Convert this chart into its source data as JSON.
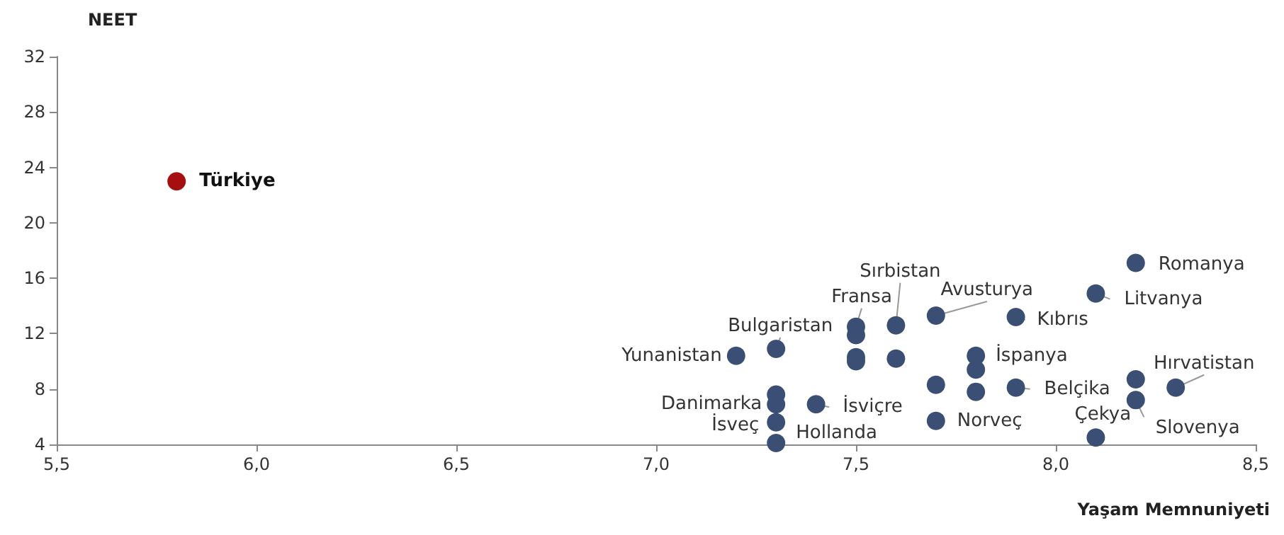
{
  "chart_data": {
    "type": "scatter",
    "xlabel": "Yaşam Memnuniyeti",
    "ylabel": "NEET",
    "marker": "circle",
    "grid": false,
    "xlim": [
      5.5,
      8.5
    ],
    "ylim": [
      4,
      32
    ],
    "xticks": [
      {
        "value": 5.5,
        "label": "5,5"
      },
      {
        "value": 6,
        "label": "6,0"
      },
      {
        "value": 6.5,
        "label": "6,5"
      },
      {
        "value": 7,
        "label": "7,0"
      },
      {
        "value": 7.5,
        "label": "7,5"
      },
      {
        "value": 8,
        "label": "8,0"
      },
      {
        "value": 8.5,
        "label": "8,5"
      }
    ],
    "yticks": [
      4,
      8,
      12,
      16,
      20,
      24,
      28,
      32
    ],
    "series": [
      {
        "color": "#3a4f73",
        "x": [
          7.2,
          7.3,
          7.5,
          7.5,
          7.6,
          7.5,
          7.5,
          7.6,
          7.7,
          7.7,
          7.7,
          7.8,
          7.8,
          7.8,
          7.9,
          7.9,
          8.2,
          8.1,
          8.3,
          8.2,
          8.2,
          8.1,
          7.3,
          7.3,
          7.4,
          7.3,
          7.3
        ],
        "values": [
          10.4,
          10.9,
          12.5,
          11.9,
          12.6,
          10.3,
          10.0,
          10.2,
          13.3,
          8.3,
          5.7,
          10.4,
          9.4,
          7.8,
          13.2,
          8.1,
          17.1,
          14.9,
          8.1,
          8.7,
          7.2,
          4.5,
          7.6,
          6.9,
          6.9,
          5.6,
          4.1
        ]
      },
      {
        "color": "#a50f0f",
        "x": [
          5.8
        ],
        "values": [
          23.0
        ]
      }
    ],
    "annotations": [
      {
        "text": "Türkiye",
        "x": 5.8,
        "y": 23.0
      },
      {
        "text": "Yunanistan",
        "x": 7.2,
        "y": 10.4
      },
      {
        "text": "Bulgaristan",
        "x": 7.3,
        "y": 10.9
      },
      {
        "text": "Fransa",
        "x": 7.5,
        "y": 12.5
      },
      {
        "text": "Sırbistan",
        "x": 7.6,
        "y": 12.6
      },
      {
        "text": "Avusturya",
        "x": 7.7,
        "y": 13.3
      },
      {
        "text": "Kıbrıs",
        "x": 7.9,
        "y": 13.2
      },
      {
        "text": "Romanya",
        "x": 8.2,
        "y": 17.1
      },
      {
        "text": "Litvanya",
        "x": 8.1,
        "y": 14.9
      },
      {
        "text": "İspanya",
        "x": 7.8,
        "y": 10.4
      },
      {
        "text": "Belçika",
        "x": 7.9,
        "y": 8.1
      },
      {
        "text": "Hırvatistan",
        "x": 8.3,
        "y": 8.1
      },
      {
        "text": "Slovenya",
        "x": 8.2,
        "y": 7.2
      },
      {
        "text": "Çekya",
        "x": 8.1,
        "y": 4.5
      },
      {
        "text": "Norveç",
        "x": 7.7,
        "y": 5.7
      },
      {
        "text": "İsviçre",
        "x": 7.4,
        "y": 6.9
      },
      {
        "text": "Danimarka",
        "x": 7.3,
        "y": 6.9
      },
      {
        "text": "İsveç",
        "x": 7.3,
        "y": 5.6
      },
      {
        "text": "Hollanda",
        "x": 7.3,
        "y": 4.1
      }
    ]
  }
}
